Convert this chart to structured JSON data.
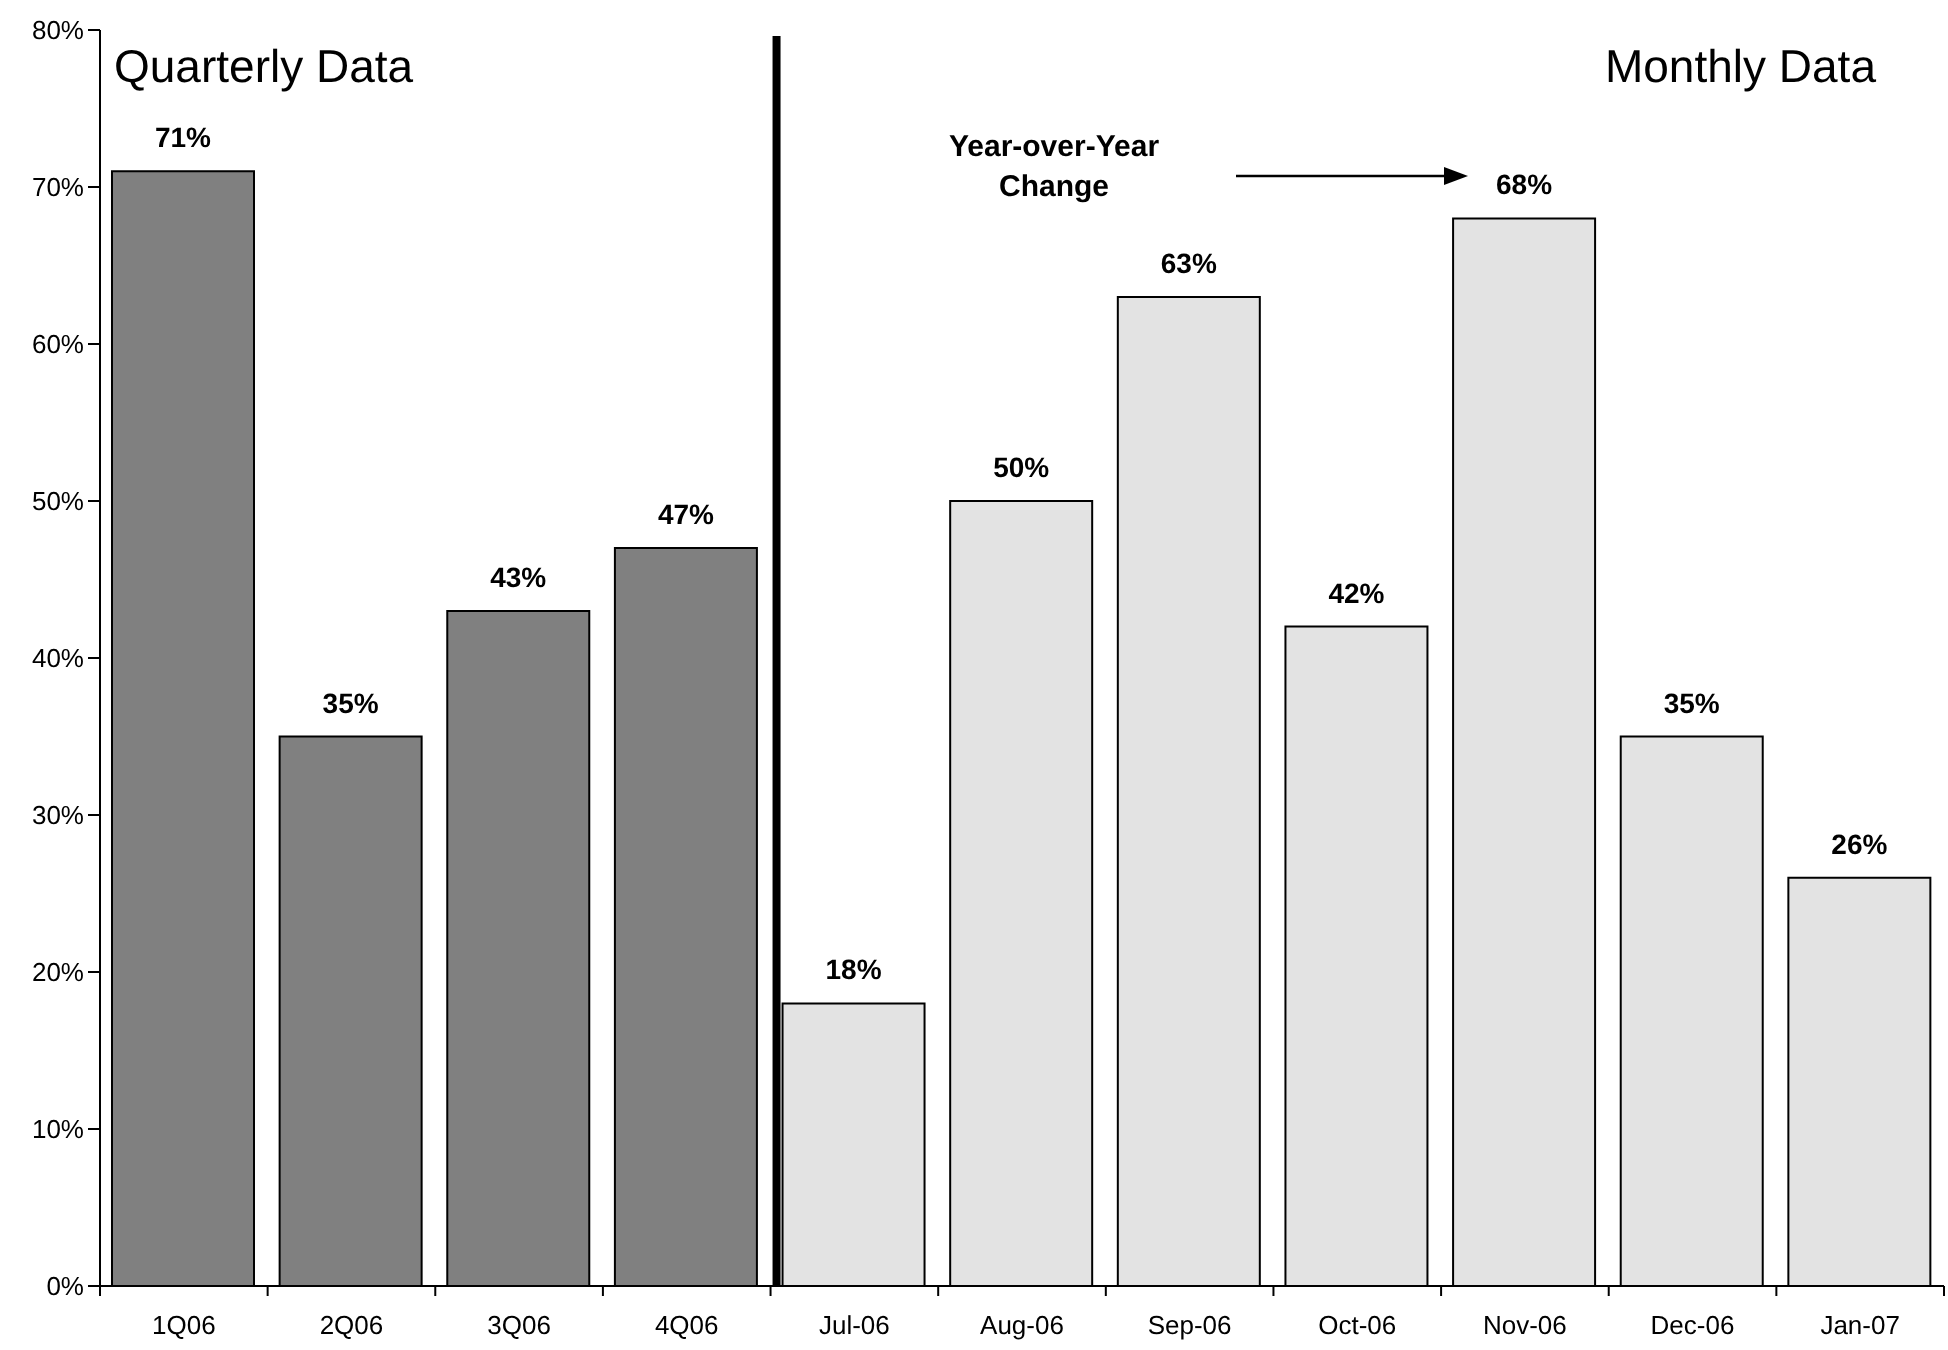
{
  "chart_data": {
    "type": "bar",
    "categories": [
      "1Q06",
      "2Q06",
      "3Q06",
      "4Q06",
      "Jul-06",
      "Aug-06",
      "Sep-06",
      "Oct-06",
      "Nov-06",
      "Dec-06",
      "Jan-07"
    ],
    "values": [
      71,
      35,
      43,
      47,
      18,
      50,
      63,
      42,
      68,
      35,
      26
    ],
    "colors": [
      "#808080",
      "#808080",
      "#808080",
      "#808080",
      "#e3e3e3",
      "#e3e3e3",
      "#e3e3e3",
      "#e3e3e3",
      "#e3e3e3",
      "#e3e3e3",
      "#e3e3e3"
    ],
    "value_labels": [
      "71%",
      "35%",
      "43%",
      "47%",
      "18%",
      "50%",
      "63%",
      "42%",
      "68%",
      "35%",
      "26%"
    ],
    "ylim": [
      0,
      80
    ],
    "yticks": [
      {
        "value": 0,
        "label": "0%"
      },
      {
        "value": 10,
        "label": "10%"
      },
      {
        "value": 20,
        "label": "20%"
      },
      {
        "value": 30,
        "label": "30%"
      },
      {
        "value": 40,
        "label": "40%"
      },
      {
        "value": 50,
        "label": "50%"
      },
      {
        "value": 60,
        "label": "60%"
      },
      {
        "value": 70,
        "label": "70%"
      },
      {
        "value": 80,
        "label": "80%"
      }
    ],
    "annotations": [
      "Quarterly Data",
      "Monthly Data",
      "Year-over-Year Change"
    ]
  }
}
